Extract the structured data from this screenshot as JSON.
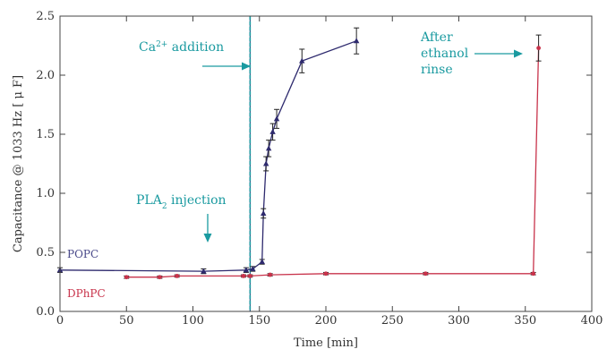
{
  "chart_data": {
    "type": "line",
    "xlabel": "Time [min]",
    "ylabel": "Capacitance @ 1033 Hz [ μ F]",
    "xlim": [
      0,
      400
    ],
    "ylim": [
      0,
      2.5
    ],
    "xticks": [
      0,
      50,
      100,
      150,
      200,
      250,
      300,
      350,
      400
    ],
    "yticks": [
      0.0,
      0.5,
      1.0,
      1.5,
      2.0,
      2.5
    ],
    "ytick_labels": [
      "0.0",
      "0.5",
      "1.0",
      "1.5",
      "2.0",
      "2.5"
    ],
    "grid": false,
    "series": [
      {
        "name": "POPC",
        "color": "#2e2a6e",
        "marker": "triangle",
        "x": [
          0,
          108,
          140,
          145,
          152,
          153,
          155,
          157,
          160,
          163,
          182,
          223
        ],
        "y": [
          0.35,
          0.34,
          0.35,
          0.36,
          0.42,
          0.83,
          1.25,
          1.38,
          1.52,
          1.63,
          2.12,
          2.29
        ],
        "err": [
          0.02,
          0.02,
          0.02,
          0.02,
          0.02,
          0.04,
          0.06,
          0.07,
          0.07,
          0.08,
          0.1,
          0.11
        ]
      },
      {
        "name": "DPhPC",
        "color": "#c8334b",
        "marker": "circle",
        "x": [
          50,
          75,
          88,
          138,
          143,
          158,
          200,
          275,
          356,
          360
        ],
        "y": [
          0.29,
          0.29,
          0.3,
          0.3,
          0.3,
          0.31,
          0.32,
          0.32,
          0.32,
          2.23
        ],
        "err": [
          0.01,
          0.01,
          0.01,
          0.01,
          0.01,
          0.01,
          0.01,
          0.01,
          0.01,
          0.11
        ]
      }
    ],
    "vline": {
      "x": 143,
      "color": "#1a9aa0"
    },
    "annotations": {
      "ca": {
        "prefix": "Ca",
        "sup": "2+",
        "rest": " addition"
      },
      "pla": {
        "prefix": "PLA",
        "sub": "2",
        "rest": " injection"
      },
      "ethanol": [
        "After",
        "ethanol",
        "rinse"
      ]
    },
    "colors": {
      "annotation": "#1a9aa0",
      "axis": "#444444"
    }
  }
}
